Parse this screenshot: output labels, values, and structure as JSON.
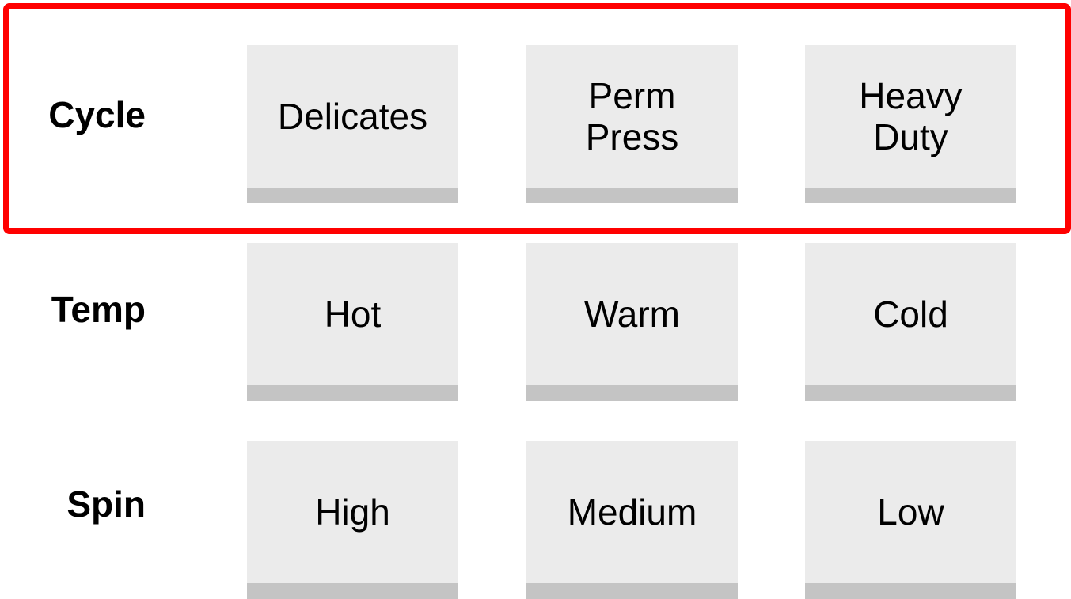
{
  "highlighted_row": "Cycle",
  "colors": {
    "highlight_border": "#ff0000",
    "key_face": "#ebebeb",
    "key_base": "#c4c4c4",
    "text": "#000000"
  },
  "rows": [
    {
      "label": "Cycle",
      "options": [
        "Delicates",
        "Perm\nPress",
        "Heavy\nDuty"
      ]
    },
    {
      "label": "Temp",
      "options": [
        "Hot",
        "Warm",
        "Cold"
      ]
    },
    {
      "label": "Spin",
      "options": [
        "High",
        "Medium",
        "Low"
      ]
    }
  ]
}
